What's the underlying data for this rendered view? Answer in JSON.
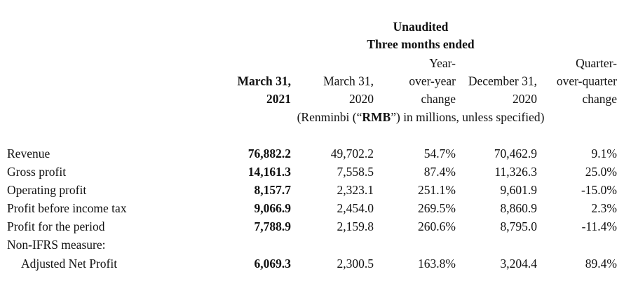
{
  "header": {
    "title": "Unaudited",
    "subtitle": "Three months ended",
    "columns": [
      {
        "lines": [
          "March 31,",
          "2021"
        ]
      },
      {
        "lines": [
          "March 31,",
          "2020"
        ]
      },
      {
        "lines": [
          "Year-",
          "over-year",
          "change"
        ]
      },
      {
        "lines": [
          "December 31,",
          "2020"
        ]
      },
      {
        "lines": [
          "Quarter-",
          "over-quarter",
          "change"
        ]
      }
    ],
    "unit_note": [
      "(Renminbi (“",
      "RMB",
      "”) in millions, unless specified)"
    ]
  },
  "table": {
    "rows": [
      {
        "label": "Revenue",
        "values": [
          "76,882.2",
          "49,702.2",
          "54.7%",
          "70,462.9",
          "9.1%"
        ]
      },
      {
        "label": "Gross profit",
        "values": [
          "14,161.3",
          "7,558.5",
          "87.4%",
          "11,326.3",
          "25.0%"
        ]
      },
      {
        "label": "Operating profit",
        "values": [
          "8,157.7",
          "2,323.1",
          "251.1%",
          "9,601.9",
          "-15.0%"
        ]
      },
      {
        "label": "Profit before income tax",
        "values": [
          "9,066.9",
          "2,454.0",
          "269.5%",
          "8,860.9",
          "2.3%"
        ]
      },
      {
        "label": "Profit for the period",
        "values": [
          "7,788.9",
          "2,159.8",
          "260.6%",
          "8,795.0",
          "-11.4%"
        ]
      },
      {
        "label": "Non-IFRS measure:",
        "values": []
      },
      {
        "label": "Adjusted Net Profit",
        "values": [
          "6,069.3",
          "2,300.5",
          "163.8%",
          "3,204.4",
          "89.4%"
        ]
      }
    ]
  }
}
